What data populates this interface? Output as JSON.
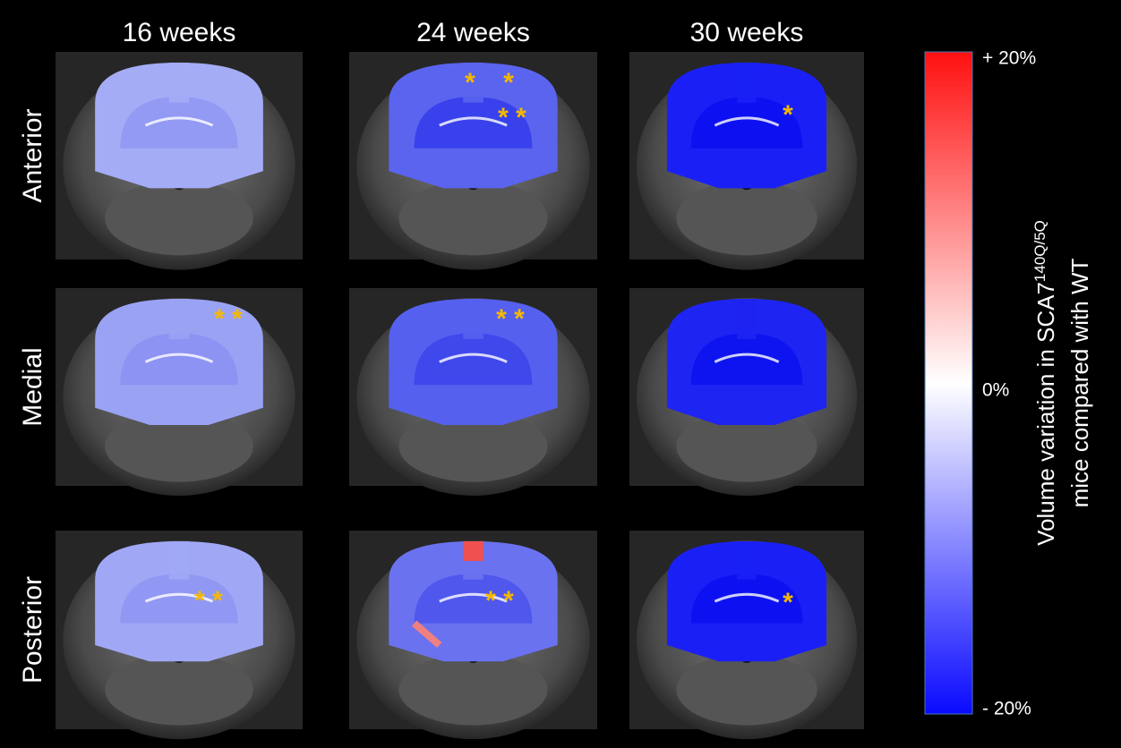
{
  "column_headers": [
    "16 weeks",
    "24 weeks",
    "30 weeks"
  ],
  "row_labels": [
    "Anterior",
    "Medial",
    "Posterior"
  ],
  "panels": [
    [
      {
        "asterisks": []
      },
      {
        "asterisks": [
          "*",
          "*",
          "* *"
        ]
      },
      {
        "asterisks": [
          "*"
        ]
      }
    ],
    [
      {
        "asterisks": [
          "* *"
        ]
      },
      {
        "asterisks": [
          "* *"
        ]
      },
      {
        "asterisks": []
      }
    ],
    [
      {
        "asterisks": [
          "* *"
        ]
      },
      {
        "asterisks": [
          "* *"
        ]
      },
      {
        "asterisks": [
          "*"
        ]
      }
    ]
  ],
  "colorbar": {
    "top_label": "+ 20%",
    "middle_label": "0%",
    "bottom_label": "- 20%",
    "title_line1": "Volume variation in SCA7",
    "title_superscript": "140Q/5Q",
    "title_line2": "mice compared with WT"
  }
}
